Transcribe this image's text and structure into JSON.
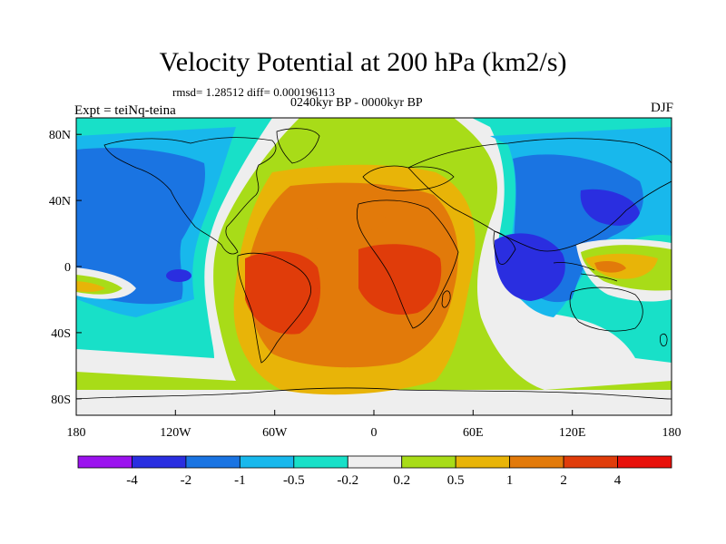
{
  "header": {
    "title": "Velocity Potential at 200 hPa (km2/s)",
    "stats": "rmsd= 1.28512 diff= 0.000196113",
    "period": "0240kyr BP - 0000kyr BP",
    "experiment": "Expt = teiNq-teina",
    "season": "DJF"
  },
  "map": {
    "lat_labels": [
      "80N",
      "40N",
      "0",
      "40S",
      "80S"
    ],
    "lon_labels": [
      "180",
      "120W",
      "60W",
      "0",
      "60E",
      "120E",
      "180"
    ],
    "lon_range": [
      -180,
      180
    ],
    "lat_range": [
      -90,
      90
    ]
  },
  "colorbar": {
    "colors": [
      "#9b12ee",
      "#2a2ee0",
      "#1a74e2",
      "#18b8ec",
      "#18e0c8",
      "#eeeeee",
      "#a8dc18",
      "#e8b408",
      "#e27a0a",
      "#e03c0a",
      "#e8100a"
    ],
    "labels": [
      "-4",
      "-2",
      "-1",
      "-0.5",
      "-0.2",
      "0.2",
      "0.5",
      "1",
      "2",
      "4"
    ]
  },
  "field_colors": {
    "neg_strong": "#2a2ee0",
    "neg_mid": "#1a74e2",
    "neg_weak": "#18b8ec",
    "neg_faint": "#18e0c8",
    "neutral": "#eeeeee",
    "pos_faint": "#a8dc18",
    "pos_weak": "#e8b408",
    "pos_mid": "#e27a0a",
    "pos_strong": "#e03c0a"
  }
}
